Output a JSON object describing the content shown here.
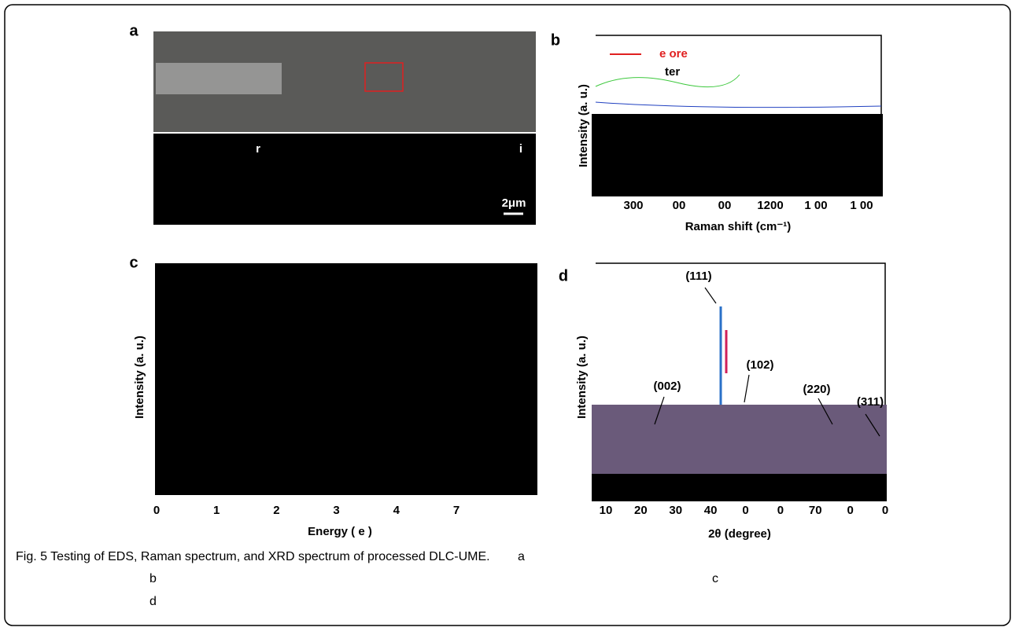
{
  "panels": [
    {
      "label": "a",
      "scale_bar": "2μm",
      "markers": [
        "r",
        "i"
      ]
    },
    {
      "label": "b",
      "legend": [
        "e ore",
        "ter"
      ],
      "y_label": "Intensity (a. u.)",
      "x_label": "Raman shift (cm⁻¹)",
      "x_ticks": [
        "300",
        "00",
        "00",
        "1200",
        "1 00",
        "1 00"
      ]
    },
    {
      "label": "c",
      "y_label": "Intensity (a. u.)",
      "x_label": "Energy ( e )",
      "x_ticks": [
        "0",
        "1",
        "2",
        "3",
        "4",
        "7"
      ]
    },
    {
      "label": "d",
      "y_label": "Intensity (a. u.)",
      "x_label": "2θ (degree)",
      "x_ticks": [
        "10",
        "20",
        "30",
        "40",
        "0",
        "0",
        "70",
        "0",
        "0"
      ],
      "peaks": [
        "(111)",
        "(102)",
        "(002)",
        "(220)",
        "(311)"
      ]
    }
  ],
  "caption": {
    "text": "Fig. 5 Testing of EDS, Raman spectrum, and XRD spectrum of processed DLC-UME.",
    "refs": [
      "a",
      "b",
      "c",
      "d"
    ]
  }
}
